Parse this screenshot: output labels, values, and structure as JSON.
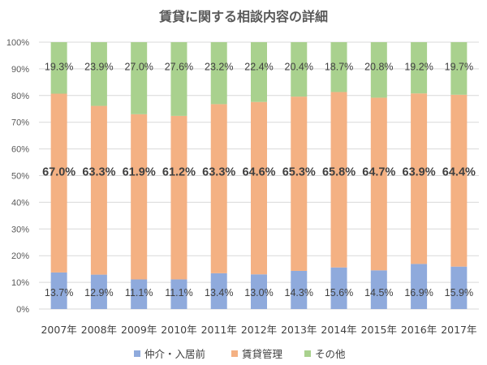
{
  "chart_data": {
    "type": "bar",
    "stacked": true,
    "normalized": true,
    "title": "賃貸に関する相談内容の詳細",
    "xlabel": "",
    "ylabel": "",
    "ylim": [
      0,
      100
    ],
    "yticks": [
      "0%",
      "10%",
      "20%",
      "30%",
      "40%",
      "50%",
      "60%",
      "70%",
      "80%",
      "90%",
      "100%"
    ],
    "categories": [
      "2007年",
      "2008年",
      "2009年",
      "2010年",
      "2011年",
      "2012年",
      "2013年",
      "2014年",
      "2015年",
      "2016年",
      "2017年"
    ],
    "series": [
      {
        "name": "仲介・入居前",
        "color": "#8faadc",
        "values": [
          13.7,
          12.9,
          11.1,
          11.1,
          13.4,
          13.0,
          14.3,
          15.6,
          14.5,
          16.9,
          15.9
        ],
        "labels": [
          "13.7%",
          "12.9%",
          "11.1%",
          "11.1%",
          "13.4%",
          "13.0%",
          "14.3%",
          "15.6%",
          "14.5%",
          "16.9%",
          "15.9%"
        ]
      },
      {
        "name": "賃貸管理",
        "color": "#f4b183",
        "values": [
          67.0,
          63.3,
          61.9,
          61.2,
          63.3,
          64.6,
          65.3,
          65.8,
          64.7,
          63.9,
          64.4
        ],
        "labels": [
          "67.0%",
          "63.3%",
          "61.9%",
          "61.2%",
          "63.3%",
          "64.6%",
          "65.3%",
          "65.8%",
          "64.7%",
          "63.9%",
          "64.4%"
        ]
      },
      {
        "name": "その他",
        "color": "#a9d18e",
        "values": [
          19.3,
          23.9,
          27.0,
          27.6,
          23.2,
          22.4,
          20.4,
          18.7,
          20.8,
          19.2,
          19.7
        ],
        "labels": [
          "19.3%",
          "23.9%",
          "27.0%",
          "27.6%",
          "23.2%",
          "22.4%",
          "20.4%",
          "18.7%",
          "20.8%",
          "19.2%",
          "19.7%"
        ]
      }
    ],
    "legend": {
      "position": "bottom",
      "items": [
        "仲介・入居前",
        "賃貸管理",
        "その他"
      ]
    },
    "grid": true
  }
}
